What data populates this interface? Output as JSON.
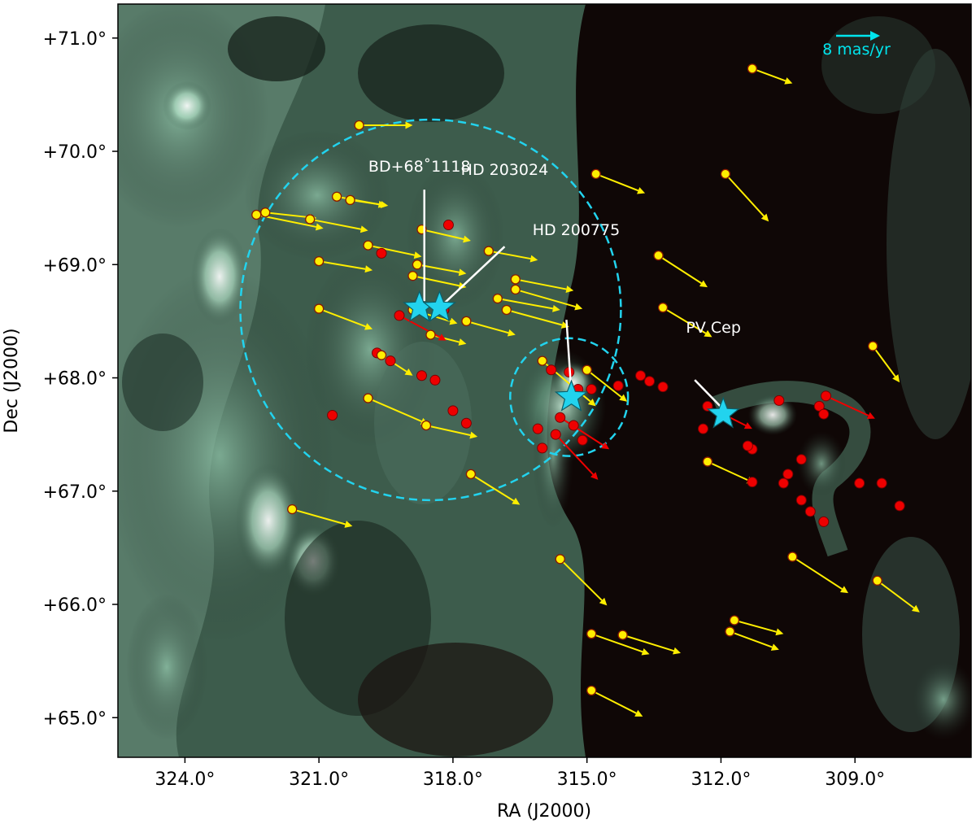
{
  "chart_data": {
    "type": "scatter",
    "title": "",
    "xlabel": "RA (J2000)",
    "ylabel": "Dec (J2000)",
    "x_reversed": true,
    "xlim": [
      325.5,
      306.4
    ],
    "ylim": [
      64.65,
      71.3
    ],
    "x_ticks": [
      {
        "value": 324.0,
        "label": "324.0°"
      },
      {
        "value": 321.0,
        "label": "321.0°"
      },
      {
        "value": 318.0,
        "label": "318.0°"
      },
      {
        "value": 315.0,
        "label": "315.0°"
      },
      {
        "value": 312.0,
        "label": "312.0°"
      },
      {
        "value": 309.0,
        "label": "309.0°"
      }
    ],
    "y_ticks": [
      {
        "value": 71.0,
        "label": "+71.0°"
      },
      {
        "value": 70.0,
        "label": "+70.0°"
      },
      {
        "value": 69.0,
        "label": "+69.0°"
      },
      {
        "value": 68.0,
        "label": "+68.0°"
      },
      {
        "value": 67.0,
        "label": "+67.0°"
      },
      {
        "value": 66.0,
        "label": "+66.0°"
      },
      {
        "value": 65.0,
        "label": "+65.0°"
      }
    ],
    "background": "dust emission map (green on black)",
    "colors": {
      "yellow_points": "#ffee00",
      "red_points": "#ee0000",
      "stars": "#22d3ee",
      "circles": "#22d3ee",
      "annotation": "#ffffff"
    },
    "scale_bar": {
      "label": "8 mas/yr",
      "length_mas_per_yr": 8
    },
    "circles": [
      {
        "center": [
          318.5,
          68.6
        ],
        "radius_dec_deg": 1.68
      },
      {
        "center": [
          315.4,
          67.83
        ],
        "radius_dec_deg": 0.52
      }
    ],
    "stars": [
      {
        "name": "BD+68°1118",
        "x": 318.75,
        "y": 68.62
      },
      {
        "name": "HD 203024",
        "x": 318.3,
        "y": 68.62
      },
      {
        "name": "HD 200775",
        "x": 315.35,
        "y": 67.83
      },
      {
        "name": "PV Cep",
        "x": 311.95,
        "y": 67.68
      }
    ],
    "annotations": [
      {
        "text": "BD+68˚1118",
        "star": "BD+68°1118"
      },
      {
        "text": "HD 203024",
        "star": "HD 203024"
      },
      {
        "text": "HD 200775",
        "star": "HD 200775"
      },
      {
        "text": "PV Cep",
        "star": "PV Cep"
      }
    ],
    "yellow_points": [
      {
        "x": 311.3,
        "y": 70.73,
        "dx": -0.9,
        "dy": -0.13
      },
      {
        "x": 320.1,
        "y": 70.23,
        "dx": -1.2,
        "dy": 0.0
      },
      {
        "x": 314.8,
        "y": 69.8,
        "dx": -1.1,
        "dy": -0.17
      },
      {
        "x": 311.9,
        "y": 69.8,
        "dx": -0.97,
        "dy": -0.42
      },
      {
        "x": 320.6,
        "y": 69.6,
        "dx": -1.1,
        "dy": -0.08
      },
      {
        "x": 320.3,
        "y": 69.57,
        "dx": -0.85,
        "dy": -0.05
      },
      {
        "x": 322.2,
        "y": 69.46,
        "dx": -1.15,
        "dy": -0.05
      },
      {
        "x": 321.2,
        "y": 69.4,
        "dx": -1.3,
        "dy": -0.1
      },
      {
        "x": 322.4,
        "y": 69.44,
        "dx": -1.5,
        "dy": -0.12
      },
      {
        "x": 318.7,
        "y": 69.31,
        "dx": -1.1,
        "dy": -0.1
      },
      {
        "x": 319.9,
        "y": 69.17,
        "dx": -1.2,
        "dy": -0.1
      },
      {
        "x": 317.2,
        "y": 69.12,
        "dx": -1.1,
        "dy": -0.08
      },
      {
        "x": 313.4,
        "y": 69.08,
        "dx": -1.1,
        "dy": -0.28
      },
      {
        "x": 321.0,
        "y": 69.03,
        "dx": -1.2,
        "dy": -0.08
      },
      {
        "x": 318.8,
        "y": 69.0,
        "dx": -1.1,
        "dy": -0.08
      },
      {
        "x": 316.6,
        "y": 68.87,
        "dx": -1.3,
        "dy": -0.1
      },
      {
        "x": 316.6,
        "y": 68.78,
        "dx": -1.5,
        "dy": -0.17
      },
      {
        "x": 318.9,
        "y": 68.9,
        "dx": -1.2,
        "dy": -0.1
      },
      {
        "x": 317.0,
        "y": 68.7,
        "dx": -1.4,
        "dy": -0.1
      },
      {
        "x": 316.8,
        "y": 68.6,
        "dx": -1.4,
        "dy": -0.15
      },
      {
        "x": 321.0,
        "y": 68.61,
        "dx": -1.2,
        "dy": -0.18
      },
      {
        "x": 313.3,
        "y": 68.62,
        "dx": -1.1,
        "dy": -0.26
      },
      {
        "x": 318.9,
        "y": 68.6,
        "dx": -1.0,
        "dy": -0.12
      },
      {
        "x": 317.7,
        "y": 68.5,
        "dx": -1.1,
        "dy": -0.12
      },
      {
        "x": 318.5,
        "y": 68.38,
        "dx": -0.8,
        "dy": -0.08
      },
      {
        "x": 308.6,
        "y": 68.28,
        "dx": -0.6,
        "dy": -0.32
      },
      {
        "x": 319.6,
        "y": 68.2,
        "dx": -0.7,
        "dy": -0.18
      },
      {
        "x": 316.0,
        "y": 68.15,
        "dx": -1.2,
        "dy": -0.4
      },
      {
        "x": 315.0,
        "y": 68.07,
        "dx": -0.9,
        "dy": -0.28
      },
      {
        "x": 319.9,
        "y": 67.82,
        "dx": -1.35,
        "dy": -0.23
      },
      {
        "x": 312.3,
        "y": 67.26,
        "dx": -1.05,
        "dy": -0.19
      },
      {
        "x": 318.6,
        "y": 67.58,
        "dx": -1.15,
        "dy": -0.1
      },
      {
        "x": 317.6,
        "y": 67.15,
        "dx": -1.1,
        "dy": -0.27
      },
      {
        "x": 321.6,
        "y": 66.84,
        "dx": -1.35,
        "dy": -0.15
      },
      {
        "x": 315.6,
        "y": 66.4,
        "dx": -1.05,
        "dy": -0.41
      },
      {
        "x": 310.4,
        "y": 66.42,
        "dx": -1.25,
        "dy": -0.32
      },
      {
        "x": 308.5,
        "y": 66.21,
        "dx": -0.95,
        "dy": -0.28
      },
      {
        "x": 311.7,
        "y": 65.86,
        "dx": -1.1,
        "dy": -0.12
      },
      {
        "x": 314.9,
        "y": 65.74,
        "dx": -1.3,
        "dy": -0.18
      },
      {
        "x": 314.2,
        "y": 65.73,
        "dx": -1.3,
        "dy": -0.16
      },
      {
        "x": 311.8,
        "y": 65.76,
        "dx": -1.1,
        "dy": -0.16
      },
      {
        "x": 314.9,
        "y": 65.24,
        "dx": -1.15,
        "dy": -0.23
      }
    ],
    "red_points": [
      {
        "x": 319.6,
        "y": 69.1
      },
      {
        "x": 318.1,
        "y": 69.35
      },
      {
        "x": 319.2,
        "y": 68.55,
        "dx": -1.05,
        "dy": -0.22
      },
      {
        "x": 319.7,
        "y": 68.22
      },
      {
        "x": 319.4,
        "y": 68.15
      },
      {
        "x": 318.7,
        "y": 68.02
      },
      {
        "x": 318.4,
        "y": 67.98
      },
      {
        "x": 318.0,
        "y": 67.71
      },
      {
        "x": 317.7,
        "y": 67.6
      },
      {
        "x": 320.7,
        "y": 67.67
      },
      {
        "x": 315.8,
        "y": 68.07
      },
      {
        "x": 315.4,
        "y": 68.05
      },
      {
        "x": 315.2,
        "y": 67.9
      },
      {
        "x": 315.6,
        "y": 67.65,
        "dx": -1.1,
        "dy": -0.28
      },
      {
        "x": 315.7,
        "y": 67.5,
        "dx": -0.95,
        "dy": -0.4
      },
      {
        "x": 315.3,
        "y": 67.58
      },
      {
        "x": 314.9,
        "y": 67.9
      },
      {
        "x": 315.1,
        "y": 67.45
      },
      {
        "x": 316.0,
        "y": 67.38
      },
      {
        "x": 316.1,
        "y": 67.55
      },
      {
        "x": 314.3,
        "y": 67.93
      },
      {
        "x": 313.8,
        "y": 68.02
      },
      {
        "x": 313.6,
        "y": 67.97
      },
      {
        "x": 313.3,
        "y": 67.92
      },
      {
        "x": 312.3,
        "y": 67.75,
        "dx": -1.0,
        "dy": -0.2
      },
      {
        "x": 312.4,
        "y": 67.55
      },
      {
        "x": 311.3,
        "y": 67.37
      },
      {
        "x": 311.4,
        "y": 67.4
      },
      {
        "x": 311.3,
        "y": 67.08
      },
      {
        "x": 310.5,
        "y": 67.15
      },
      {
        "x": 310.6,
        "y": 67.07
      },
      {
        "x": 310.2,
        "y": 67.28
      },
      {
        "x": 310.7,
        "y": 67.8
      },
      {
        "x": 309.8,
        "y": 67.75
      },
      {
        "x": 309.7,
        "y": 67.68
      },
      {
        "x": 309.65,
        "y": 67.84,
        "dx": -1.1,
        "dy": -0.2
      },
      {
        "x": 308.9,
        "y": 67.07
      },
      {
        "x": 308.4,
        "y": 67.07
      },
      {
        "x": 308.0,
        "y": 66.87
      },
      {
        "x": 310.2,
        "y": 66.92
      },
      {
        "x": 310.0,
        "y": 66.82
      },
      {
        "x": 309.7,
        "y": 66.73
      },
      {
        "x": 318.2,
        "y": 68.6
      }
    ]
  }
}
